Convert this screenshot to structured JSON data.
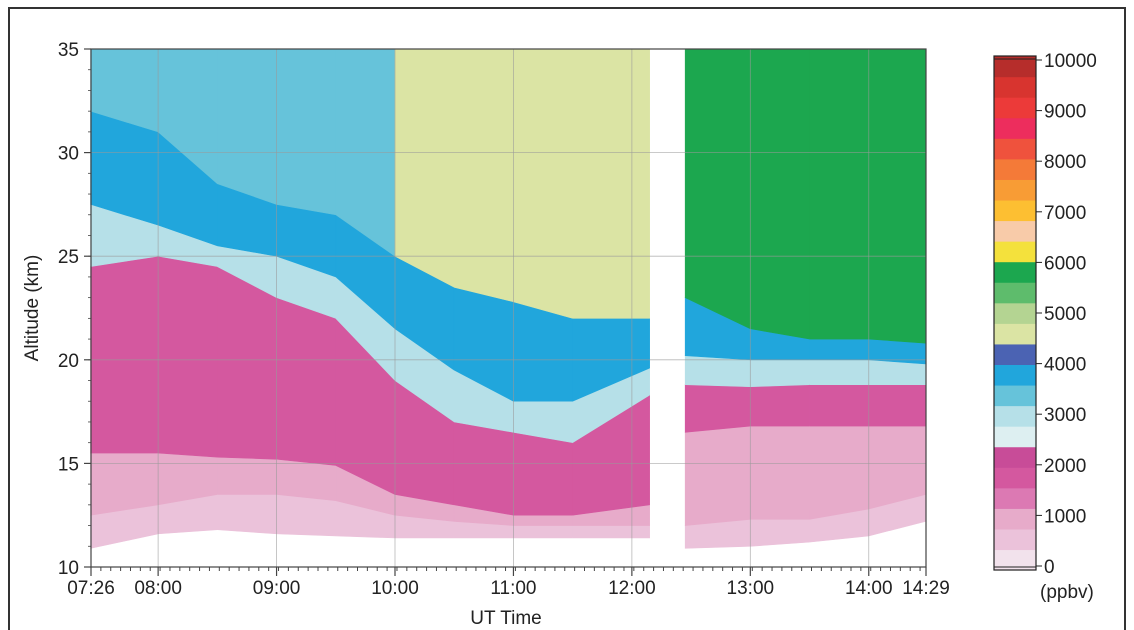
{
  "chart_data": {
    "type": "heatmap",
    "title": "",
    "xlabel": "UT Time",
    "ylabel": "Altitude (km)",
    "x_ticks": [
      "07:26",
      "08:00",
      "09:00",
      "10:00",
      "11:00",
      "12:00",
      "13:00",
      "14:00",
      "14:29"
    ],
    "x_tick_hours": [
      7.4333,
      8.0,
      9.0,
      10.0,
      11.0,
      12.0,
      13.0,
      14.0,
      14.4833
    ],
    "xlim_hours": [
      7.4333,
      14.4833
    ],
    "y_ticks": [
      "10",
      "15",
      "20",
      "25",
      "30",
      "35"
    ],
    "ylim": [
      10,
      35
    ],
    "grid": true,
    "data_gap_hours": [
      12.17,
      12.42
    ],
    "colorbar": {
      "unit": "(ppbv)",
      "ticks": [
        "10000",
        "9000",
        "8000",
        "7000",
        "6000",
        "5000",
        "4000",
        "3000",
        "2000",
        "1000",
        "0"
      ],
      "range": [
        0,
        10000
      ],
      "colors": [
        "#f2e2ec",
        "#ebc2da",
        "#e7abca",
        "#dc79b3",
        "#d4589f",
        "#c84c98",
        "#ddeff1",
        "#b6e0e8",
        "#66c3da",
        "#21a6dc",
        "#4b63b3",
        "#dbe4a4",
        "#b4d492",
        "#5ebc6c",
        "#1ca74f",
        "#f4e13c",
        "#f8cba9",
        "#fdbf32",
        "#f89c35",
        "#f47a38",
        "#ef523d",
        "#ed2d5d",
        "#ec3a39",
        "#d8342f",
        "#b62d2b"
      ]
    },
    "ozone_columns": [
      {
        "t_hours": 7.43,
        "boundaries_km": [
          10.9,
          12.5,
          15.5,
          24.5,
          27.5,
          32.0
        ],
        "top_band": "2500"
      },
      {
        "t_hours": 8.0,
        "boundaries_km": [
          11.6,
          13.0,
          15.5,
          25.0,
          26.5,
          31.0
        ],
        "top_band": "3000"
      },
      {
        "t_hours": 8.5,
        "boundaries_km": [
          11.8,
          13.5,
          15.3,
          24.5,
          25.5,
          28.5
        ],
        "top_band": "3000"
      },
      {
        "t_hours": 9.0,
        "boundaries_km": [
          11.6,
          13.5,
          15.2,
          23.0,
          25.0,
          27.5
        ],
        "top_band": "3000"
      },
      {
        "t_hours": 9.5,
        "boundaries_km": [
          11.5,
          13.2,
          14.9,
          22.0,
          24.0,
          27.0
        ],
        "top_band": "3000"
      },
      {
        "t_hours": 10.0,
        "boundaries_km": [
          11.4,
          12.5,
          13.5,
          19.0,
          21.5,
          25.0
        ],
        "top_band": "4500"
      },
      {
        "t_hours": 10.5,
        "boundaries_km": [
          11.4,
          12.2,
          13.0,
          17.0,
          19.5,
          23.5
        ],
        "top_band": "4500"
      },
      {
        "t_hours": 11.0,
        "boundaries_km": [
          11.4,
          12.0,
          12.5,
          16.5,
          18.0,
          22.8
        ],
        "top_band": "4500"
      },
      {
        "t_hours": 11.5,
        "boundaries_km": [
          11.4,
          12.0,
          12.5,
          16.0,
          18.0,
          22.0
        ],
        "top_band": "4500"
      },
      {
        "t_hours": 12.15,
        "boundaries_km": [
          11.4,
          12.0,
          13.0,
          18.3,
          19.6,
          22.0
        ],
        "top_band": "4500"
      },
      {
        "t_hours": 12.45,
        "boundaries_km": [
          10.9,
          12.0,
          16.5,
          18.8,
          20.2,
          23.0
        ],
        "top_band": "5000"
      },
      {
        "t_hours": 13.0,
        "boundaries_km": [
          11.0,
          12.3,
          16.8,
          18.7,
          20.0,
          21.5
        ],
        "top_band": "5000"
      },
      {
        "t_hours": 13.5,
        "boundaries_km": [
          11.2,
          12.3,
          16.8,
          18.8,
          20.0,
          21.0
        ],
        "top_band": "5000"
      },
      {
        "t_hours": 14.0,
        "boundaries_km": [
          11.5,
          12.8,
          16.8,
          18.8,
          20.0,
          21.0
        ],
        "top_band": "5000"
      },
      {
        "t_hours": 14.48,
        "boundaries_km": [
          12.2,
          13.5,
          16.8,
          18.8,
          19.8,
          20.8
        ],
        "top_band": "5000"
      }
    ]
  }
}
